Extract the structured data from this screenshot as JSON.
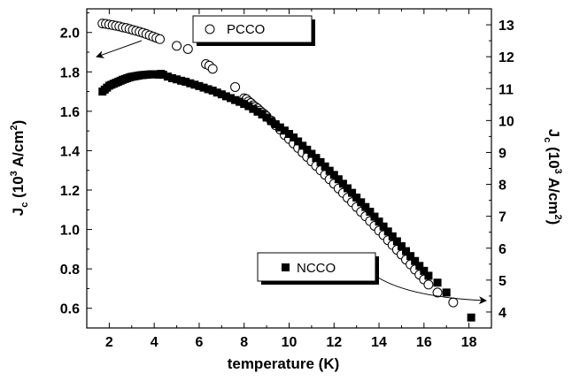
{
  "chart_data": {
    "type": "scatter",
    "xlabel": "temperature (K)",
    "ylabel_left": {
      "main": "J",
      "sub": "c",
      "unit_pre": "(10",
      "unit_exp": "3",
      "unit_mid": " A/cm",
      "unit_exp2": "2",
      "unit_post": ")"
    },
    "ylabel_right": {
      "main": "J",
      "sub": "c",
      "unit_pre": "(10",
      "unit_exp": "3",
      "unit_mid": " A/cm",
      "unit_exp2": "2",
      "unit_post": ")"
    },
    "xlim": [
      1.0,
      19.0
    ],
    "ylim_left": [
      0.5,
      2.12
    ],
    "ylim_right": [
      3.5,
      13.5
    ],
    "x_ticks": [
      2,
      4,
      6,
      8,
      10,
      12,
      14,
      16,
      18
    ],
    "y_left_ticks": [
      "0.6",
      "0.8",
      "1.0",
      "1.2",
      "1.4",
      "1.6",
      "1.8",
      "2.0"
    ],
    "y_right_ticks": [
      "4",
      "5",
      "6",
      "7",
      "8",
      "9",
      "10",
      "11",
      "12",
      "13"
    ],
    "grid": false,
    "series": [
      {
        "name": "PCCO",
        "axis": "right",
        "marker": "open-circle",
        "points": [
          [
            1.7,
            13.04
          ],
          [
            1.85,
            13.03
          ],
          [
            2.0,
            13.01
          ],
          [
            2.15,
            12.99
          ],
          [
            2.3,
            12.97
          ],
          [
            2.45,
            12.95
          ],
          [
            2.6,
            12.92
          ],
          [
            2.75,
            12.9
          ],
          [
            2.9,
            12.87
          ],
          [
            3.05,
            12.84
          ],
          [
            3.2,
            12.81
          ],
          [
            3.35,
            12.78
          ],
          [
            3.5,
            12.75
          ],
          [
            3.65,
            12.71
          ],
          [
            3.8,
            12.67
          ],
          [
            3.95,
            12.63
          ],
          [
            4.1,
            12.59
          ],
          [
            4.25,
            12.55
          ],
          [
            5.0,
            12.34
          ],
          [
            5.5,
            12.24
          ],
          [
            6.3,
            11.77
          ],
          [
            6.45,
            11.72
          ],
          [
            6.6,
            11.62
          ],
          [
            7.6,
            11.05
          ],
          [
            8.0,
            10.7
          ],
          [
            8.1,
            10.67
          ],
          [
            8.2,
            10.6
          ],
          [
            8.3,
            10.55
          ],
          [
            8.4,
            10.48
          ],
          [
            8.5,
            10.43
          ],
          [
            8.6,
            10.38
          ],
          [
            8.7,
            10.31
          ],
          [
            8.8,
            10.25
          ],
          [
            8.9,
            10.2
          ],
          [
            9.0,
            10.13
          ],
          [
            9.2,
            10.0
          ],
          [
            9.4,
            9.85
          ],
          [
            9.6,
            9.72
          ],
          [
            9.8,
            9.55
          ],
          [
            10.0,
            9.42
          ],
          [
            10.2,
            9.28
          ],
          [
            10.4,
            9.14
          ],
          [
            10.6,
            9.0
          ],
          [
            10.8,
            8.86
          ],
          [
            11.0,
            8.72
          ],
          [
            11.2,
            8.58
          ],
          [
            11.4,
            8.44
          ],
          [
            11.6,
            8.3
          ],
          [
            11.8,
            8.16
          ],
          [
            12.0,
            8.02
          ],
          [
            12.2,
            7.87
          ],
          [
            12.4,
            7.73
          ],
          [
            12.6,
            7.58
          ],
          [
            12.8,
            7.44
          ],
          [
            13.0,
            7.29
          ],
          [
            13.2,
            7.14
          ],
          [
            13.4,
            7.0
          ],
          [
            13.6,
            6.85
          ],
          [
            13.8,
            6.7
          ],
          [
            14.0,
            6.55
          ],
          [
            14.2,
            6.41
          ],
          [
            14.4,
            6.25
          ],
          [
            14.6,
            6.1
          ],
          [
            14.8,
            5.95
          ],
          [
            15.0,
            5.8
          ],
          [
            15.2,
            5.64
          ],
          [
            15.4,
            5.49
          ],
          [
            15.6,
            5.33
          ],
          [
            15.8,
            5.17
          ],
          [
            16.0,
            5.02
          ],
          [
            16.2,
            4.86
          ],
          [
            16.6,
            4.61
          ],
          [
            17.3,
            4.3
          ]
        ]
      },
      {
        "name": "NCCO",
        "axis": "left",
        "marker": "filled-square",
        "points": [
          [
            1.7,
            1.7
          ],
          [
            1.8,
            1.71
          ],
          [
            1.9,
            1.72
          ],
          [
            2.0,
            1.73
          ],
          [
            2.1,
            1.735
          ],
          [
            2.2,
            1.74
          ],
          [
            2.3,
            1.745
          ],
          [
            2.4,
            1.75
          ],
          [
            2.5,
            1.755
          ],
          [
            2.6,
            1.76
          ],
          [
            2.7,
            1.764
          ],
          [
            2.8,
            1.768
          ],
          [
            2.9,
            1.772
          ],
          [
            3.0,
            1.775
          ],
          [
            3.1,
            1.777
          ],
          [
            3.2,
            1.779
          ],
          [
            3.3,
            1.781
          ],
          [
            3.4,
            1.783
          ],
          [
            3.5,
            1.784
          ],
          [
            3.6,
            1.785
          ],
          [
            3.7,
            1.786
          ],
          [
            3.8,
            1.787
          ],
          [
            3.9,
            1.788
          ],
          [
            4.0,
            1.788
          ],
          [
            4.1,
            1.787
          ],
          [
            4.2,
            1.786
          ],
          [
            4.3,
            1.79
          ],
          [
            4.4,
            1.785
          ],
          [
            4.6,
            1.776
          ],
          [
            4.8,
            1.768
          ],
          [
            5.0,
            1.762
          ],
          [
            5.2,
            1.755
          ],
          [
            5.4,
            1.75
          ],
          [
            5.6,
            1.742
          ],
          [
            5.8,
            1.735
          ],
          [
            6.0,
            1.728
          ],
          [
            6.2,
            1.72
          ],
          [
            6.4,
            1.712
          ],
          [
            6.6,
            1.705
          ],
          [
            6.8,
            1.695
          ],
          [
            7.0,
            1.686
          ],
          [
            7.2,
            1.676
          ],
          [
            7.4,
            1.667
          ],
          [
            7.6,
            1.657
          ],
          [
            7.8,
            1.648
          ],
          [
            8.0,
            1.637
          ],
          [
            8.2,
            1.626
          ],
          [
            8.4,
            1.612
          ],
          [
            8.6,
            1.598
          ],
          [
            8.8,
            1.584
          ],
          [
            9.0,
            1.568
          ],
          [
            9.2,
            1.55
          ],
          [
            9.4,
            1.534
          ],
          [
            9.6,
            1.518
          ],
          [
            9.8,
            1.502
          ],
          [
            10.0,
            1.485
          ],
          [
            10.2,
            1.467
          ],
          [
            10.4,
            1.447
          ],
          [
            10.6,
            1.425
          ],
          [
            10.8,
            1.405
          ],
          [
            11.0,
            1.384
          ],
          [
            11.2,
            1.363
          ],
          [
            11.4,
            1.342
          ],
          [
            11.6,
            1.32
          ],
          [
            11.8,
            1.298
          ],
          [
            12.0,
            1.277
          ],
          [
            12.2,
            1.255
          ],
          [
            12.4,
            1.232
          ],
          [
            12.6,
            1.209
          ],
          [
            12.8,
            1.186
          ],
          [
            13.0,
            1.162
          ],
          [
            13.2,
            1.138
          ],
          [
            13.4,
            1.114
          ],
          [
            13.6,
            1.09
          ],
          [
            13.8,
            1.065
          ],
          [
            14.0,
            1.04
          ],
          [
            14.2,
            1.015
          ],
          [
            14.4,
            0.99
          ],
          [
            14.6,
            0.965
          ],
          [
            14.8,
            0.94
          ],
          [
            15.0,
            0.915
          ],
          [
            15.2,
            0.89
          ],
          [
            15.4,
            0.865
          ],
          [
            15.6,
            0.84
          ],
          [
            15.8,
            0.815
          ],
          [
            16.0,
            0.79
          ],
          [
            16.2,
            0.765
          ],
          [
            16.6,
            0.73
          ],
          [
            17.0,
            0.68
          ],
          [
            18.1,
            0.553
          ]
        ]
      }
    ]
  }
}
